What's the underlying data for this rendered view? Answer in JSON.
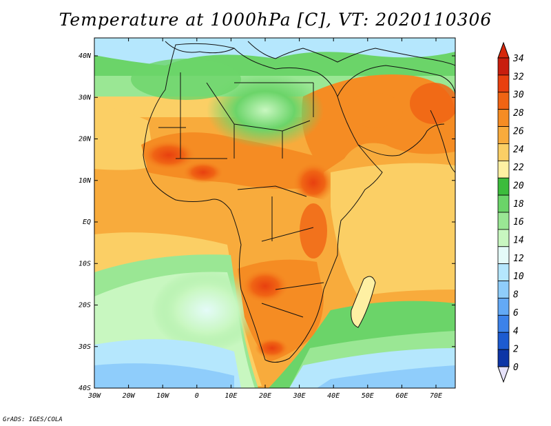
{
  "title": "Temperature at 1000hPa [C], VT: 2020110306",
  "credit": "GrADS: IGES/COLA",
  "map": {
    "lat_ticks": [
      "40N",
      "30N",
      "20N",
      "10N",
      "EQ",
      "10S",
      "20S",
      "30S",
      "40S"
    ],
    "lon_ticks": [
      "30W",
      "20W",
      "10W",
      "0",
      "10E",
      "20E",
      "30E",
      "40E",
      "50E",
      "60E",
      "70E"
    ]
  },
  "colorbar": {
    "labels": [
      "34",
      "32",
      "30",
      "28",
      "26",
      "24",
      "22",
      "20",
      "18",
      "16",
      "14",
      "12",
      "10",
      "8",
      "6",
      "4",
      "2",
      "0"
    ],
    "colors": [
      "#c81e0e",
      "#e8400f",
      "#f06414",
      "#f58c23",
      "#f8ab3c",
      "#fbcf65",
      "#fef0a3",
      "#3cbc3c",
      "#6bd469",
      "#9ae794",
      "#c8f7c0",
      "#e4fbf8",
      "#b5e7fd",
      "#8fcdfb",
      "#63a9f6",
      "#3c82ea",
      "#1d5bd0",
      "#0d35a6",
      "#0a1f78"
    ],
    "top_color": "#d6280c",
    "bottom_color": "#e6e2fa"
  }
}
